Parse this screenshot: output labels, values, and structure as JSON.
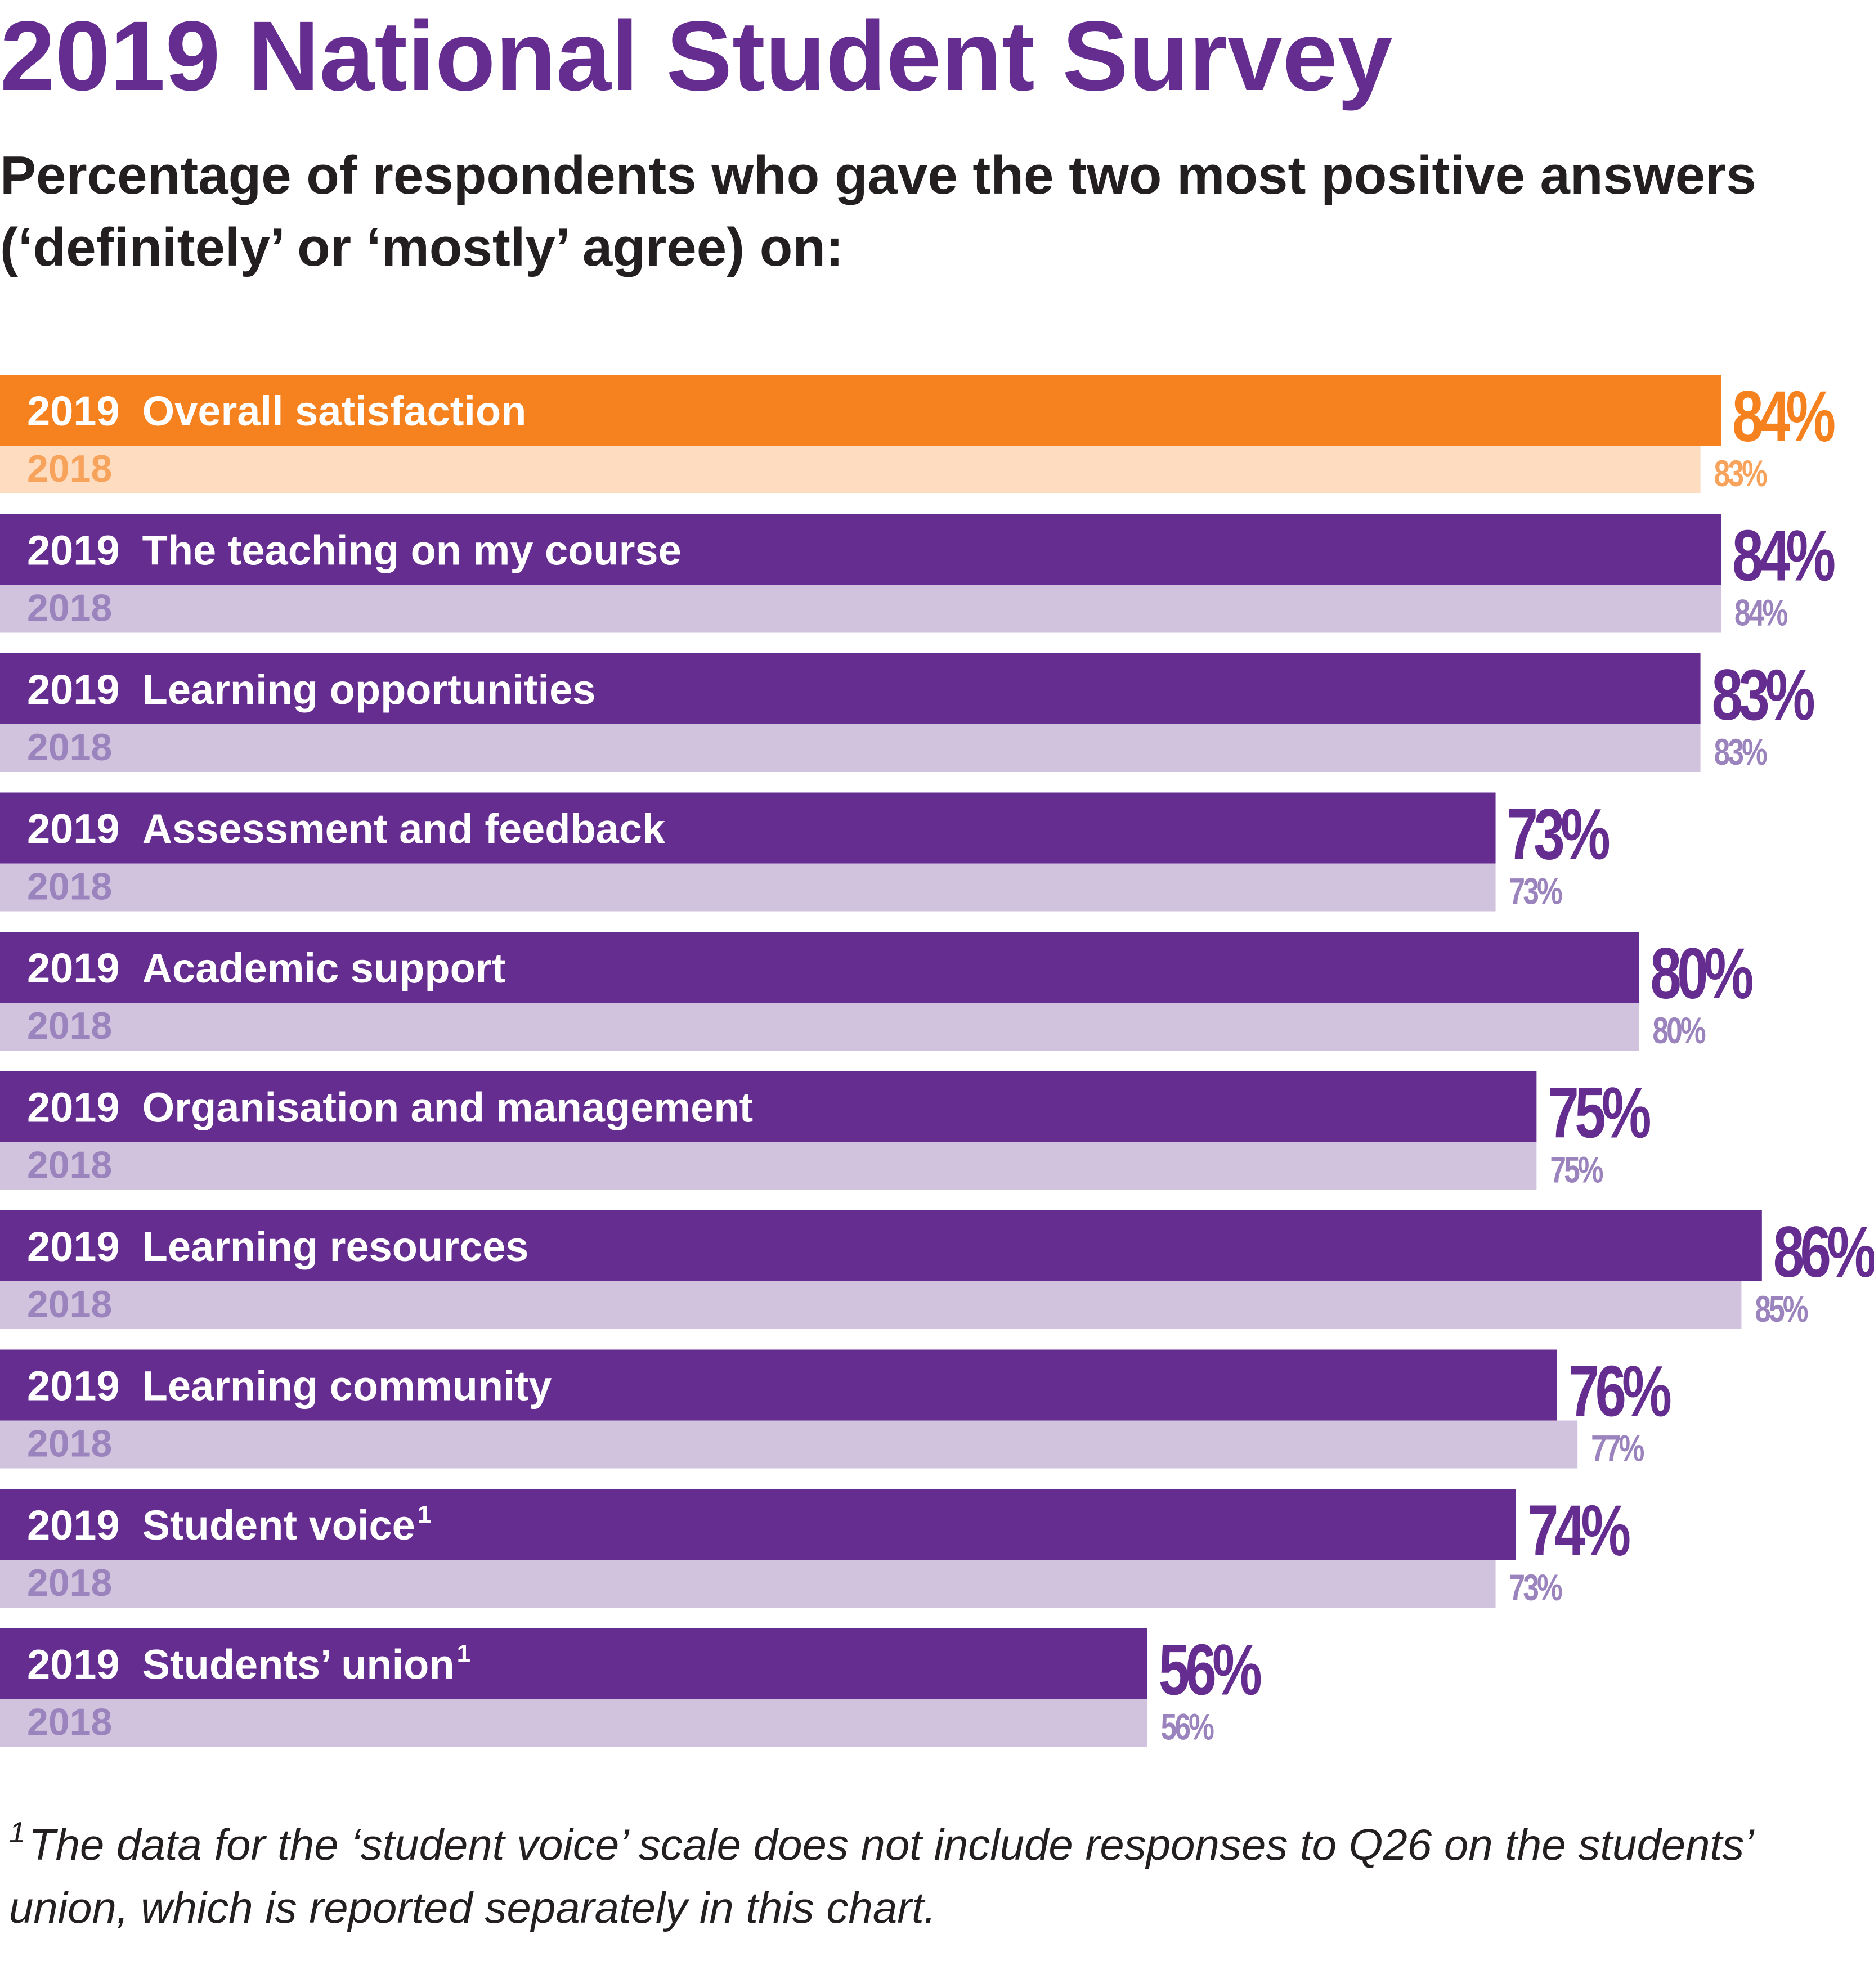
{
  "title": "2019 National Student Survey",
  "subtitle": "Percentage of respondents who gave the two most positive answers (‘definitely’ or ‘mostly’ agree) on:",
  "footnote": {
    "marker": "1",
    "text": "The data for the ‘student voice’ scale does not include responses to Q26 on the students’ union, which is reported separately in this chart."
  },
  "colors": {
    "highlight_2019": "#f5821f",
    "highlight_2018": "#fddcc0",
    "highlight_2018_label": "#f7a35c",
    "main_2019": "#662d91",
    "main_2018": "#d1c2de",
    "main_2018_label": "#9b84bd"
  },
  "chart_data": {
    "type": "bar",
    "orientation": "horizontal",
    "title": "2019 National Student Survey",
    "subtitle": "Percentage of respondents who gave the two most positive answers (‘definitely’ or ‘mostly’ agree) on:",
    "year_label_2019": "2019",
    "year_label_2018": "2018",
    "value_suffix": "%",
    "xlim": [
      0,
      100
    ],
    "categories": [
      "Overall satisfaction",
      "The teaching on my course",
      "Learning opportunities",
      "Assessment and feedback",
      "Academic support",
      "Organisation and management",
      "Learning resources",
      "Learning community",
      "Student voice",
      "Students’ union"
    ],
    "superscripts": [
      "",
      "",
      "",
      "",
      "",
      "",
      "",
      "",
      "1",
      "1"
    ],
    "highlight_index": 0,
    "series": [
      {
        "name": "2019",
        "values": [
          84,
          84,
          83,
          73,
          80,
          75,
          86,
          76,
          74,
          56
        ]
      },
      {
        "name": "2018",
        "values": [
          83,
          84,
          83,
          73,
          80,
          75,
          85,
          77,
          73,
          56
        ]
      }
    ]
  }
}
